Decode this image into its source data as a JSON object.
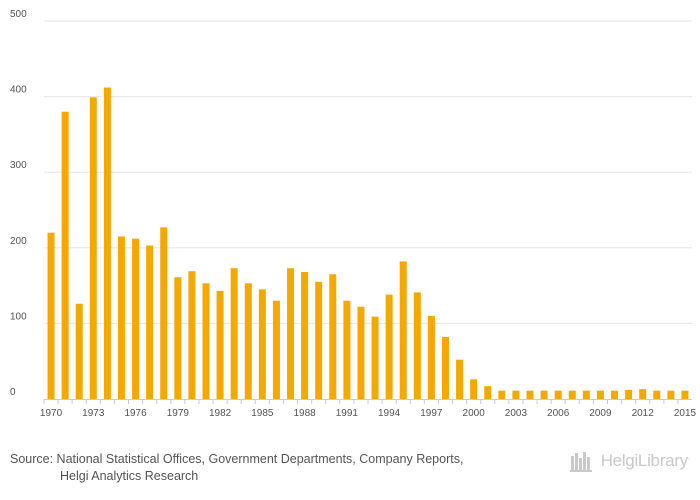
{
  "chart_data": {
    "type": "bar",
    "title": "",
    "xlabel": "",
    "ylabel": "",
    "ylim": [
      0,
      500
    ],
    "yticks": [
      0,
      100,
      200,
      300,
      400,
      500
    ],
    "x": [
      1970,
      1971,
      1972,
      1973,
      1974,
      1975,
      1976,
      1977,
      1978,
      1979,
      1980,
      1981,
      1982,
      1983,
      1984,
      1985,
      1986,
      1987,
      1988,
      1989,
      1990,
      1991,
      1992,
      1993,
      1994,
      1995,
      1996,
      1997,
      1998,
      1999,
      2000,
      2001,
      2002,
      2003,
      2004,
      2005,
      2006,
      2007,
      2008,
      2009,
      2010,
      2011,
      2012,
      2013,
      2014,
      2015
    ],
    "xtick_labels": [
      "1970",
      "1973",
      "1976",
      "1979",
      "1982",
      "1985",
      "1988",
      "1991",
      "1994",
      "1997",
      "2000",
      "2003",
      "2006",
      "2009",
      "2012",
      "2015"
    ],
    "values": [
      220,
      380,
      126,
      399,
      412,
      215,
      212,
      203,
      227,
      161,
      169,
      153,
      143,
      173,
      153,
      145,
      130,
      173,
      168,
      155,
      165,
      130,
      122,
      109,
      138,
      182,
      141,
      110,
      82,
      52,
      26,
      17,
      11,
      11,
      11,
      11,
      11,
      11,
      11,
      11,
      11,
      12,
      13,
      11,
      11,
      11
    ],
    "bar_color": "#f5a800",
    "grid": true,
    "legend": "none"
  },
  "footer": {
    "source_line1": "Source: National Statistical Offices, Government Departments, Company Reports,",
    "source_line2": "Helgi Analytics Research"
  },
  "logo": {
    "text": "HelgiLibrary",
    "reg": "."
  },
  "colors": {
    "accent": "#f5a800",
    "grid": "#e6e6e6",
    "axis": "#cccccc",
    "text": "#555555"
  }
}
